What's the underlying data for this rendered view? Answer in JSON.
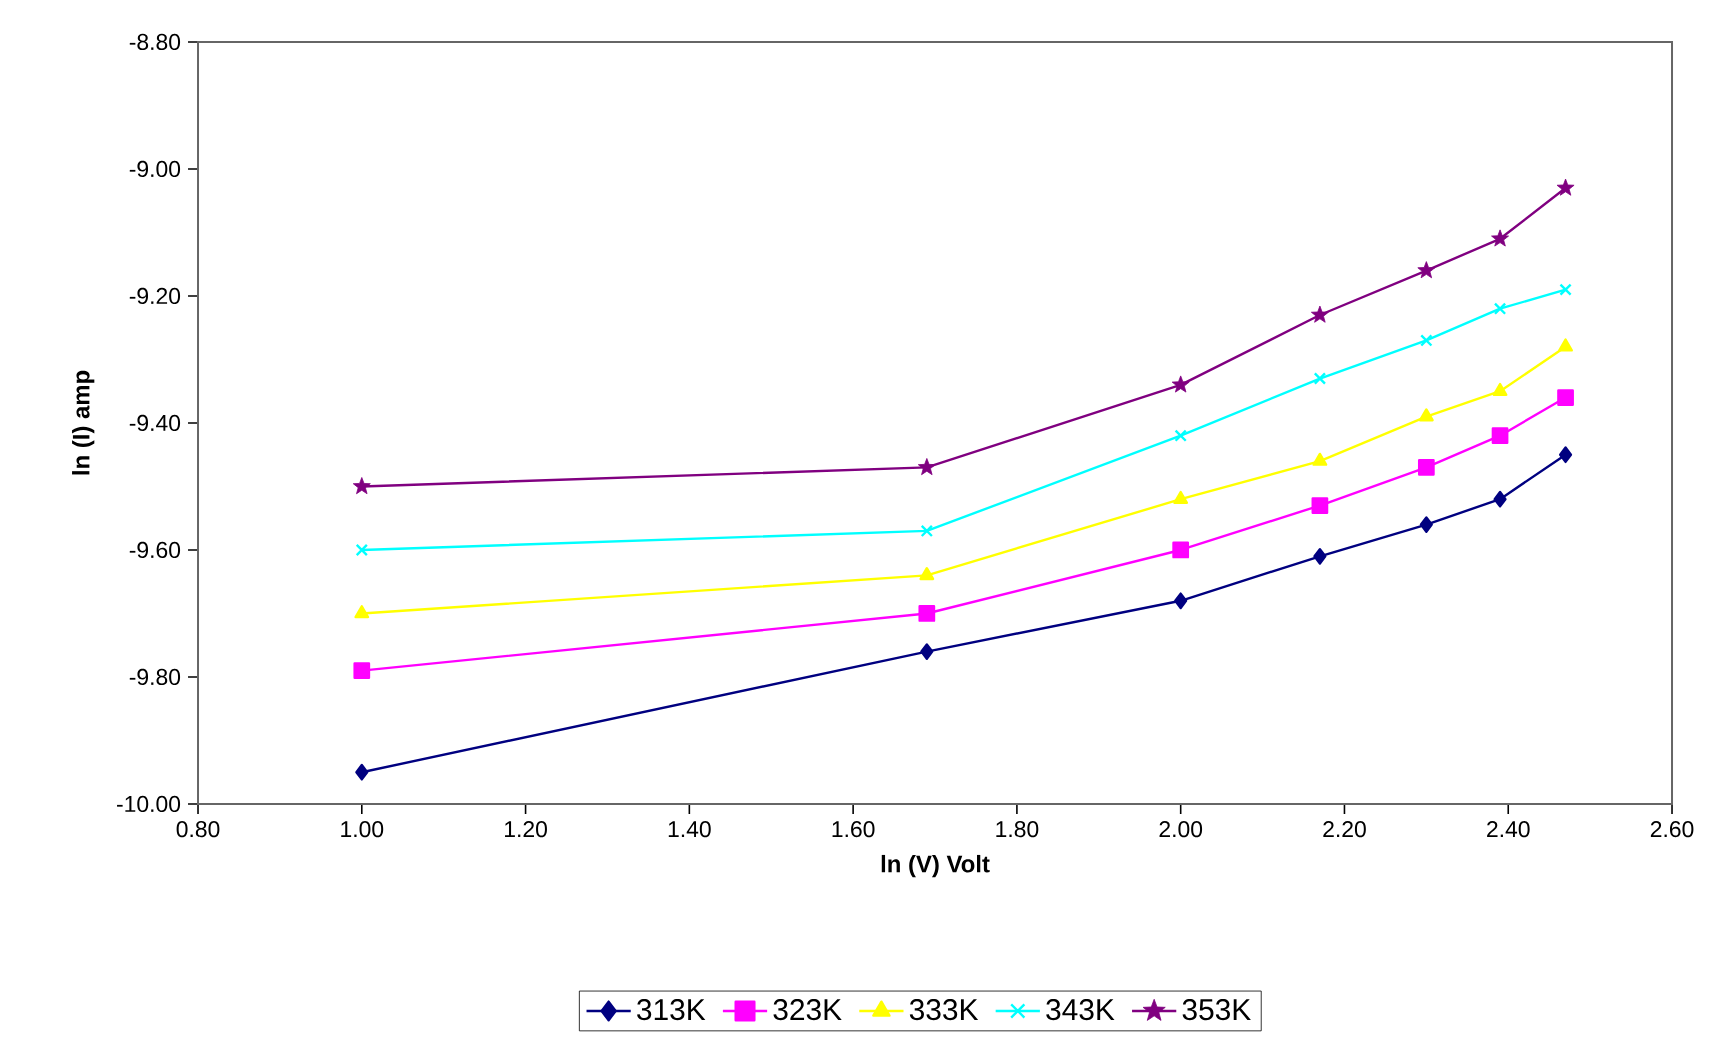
{
  "chart_data": {
    "type": "line",
    "xlabel": "ln (V) Volt",
    "ylabel": "ln (I) amp",
    "x": [
      1.0,
      1.69,
      2.0,
      2.17,
      2.3,
      2.39,
      2.47
    ],
    "series": [
      {
        "name": "313K",
        "color": "#000080",
        "marker": "diamond",
        "values": [
          -9.95,
          -9.76,
          -9.68,
          -9.61,
          -9.56,
          -9.52,
          -9.45
        ]
      },
      {
        "name": "323K",
        "color": "#ff00ff",
        "marker": "square",
        "values": [
          -9.79,
          -9.7,
          -9.6,
          -9.53,
          -9.47,
          -9.42,
          -9.36
        ]
      },
      {
        "name": "333K",
        "color": "#ffff00",
        "marker": "triangle",
        "values": [
          -9.7,
          -9.64,
          -9.52,
          -9.46,
          -9.39,
          -9.35,
          -9.28
        ]
      },
      {
        "name": "343K",
        "color": "#00ffff",
        "marker": "cross",
        "values": [
          -9.6,
          -9.57,
          -9.42,
          -9.33,
          -9.27,
          -9.22,
          -9.19
        ]
      },
      {
        "name": "353K",
        "color": "#800080",
        "marker": "star",
        "values": [
          -9.5,
          -9.47,
          -9.34,
          -9.23,
          -9.16,
          -9.11,
          -9.03
        ]
      }
    ],
    "xlim": [
      0.8,
      2.6
    ],
    "xticks": [
      {
        "value": 0.8,
        "label": "0.80"
      },
      {
        "value": 1.0,
        "label": "1.00"
      },
      {
        "value": 1.2,
        "label": "1.20"
      },
      {
        "value": 1.4,
        "label": "1.40"
      },
      {
        "value": 1.6,
        "label": "1.60"
      },
      {
        "value": 1.8,
        "label": "1.80"
      },
      {
        "value": 2.0,
        "label": "2.00"
      },
      {
        "value": 2.2,
        "label": "2.20"
      },
      {
        "value": 2.4,
        "label": "2.40"
      },
      {
        "value": 2.6,
        "label": "2.60"
      }
    ],
    "ylim": [
      -10.0,
      -8.8
    ],
    "yticks": [
      {
        "value": -10.0,
        "label": "-10.00"
      },
      {
        "value": -9.8,
        "label": "-9.80"
      },
      {
        "value": -9.6,
        "label": "-9.60"
      },
      {
        "value": -9.4,
        "label": "-9.40"
      },
      {
        "value": -9.2,
        "label": "-9.20"
      },
      {
        "value": -9.0,
        "label": "-9.00"
      },
      {
        "value": -8.8,
        "label": "-8.80"
      }
    ],
    "grid": false,
    "legend": "bottom",
    "line_style": "solid"
  }
}
